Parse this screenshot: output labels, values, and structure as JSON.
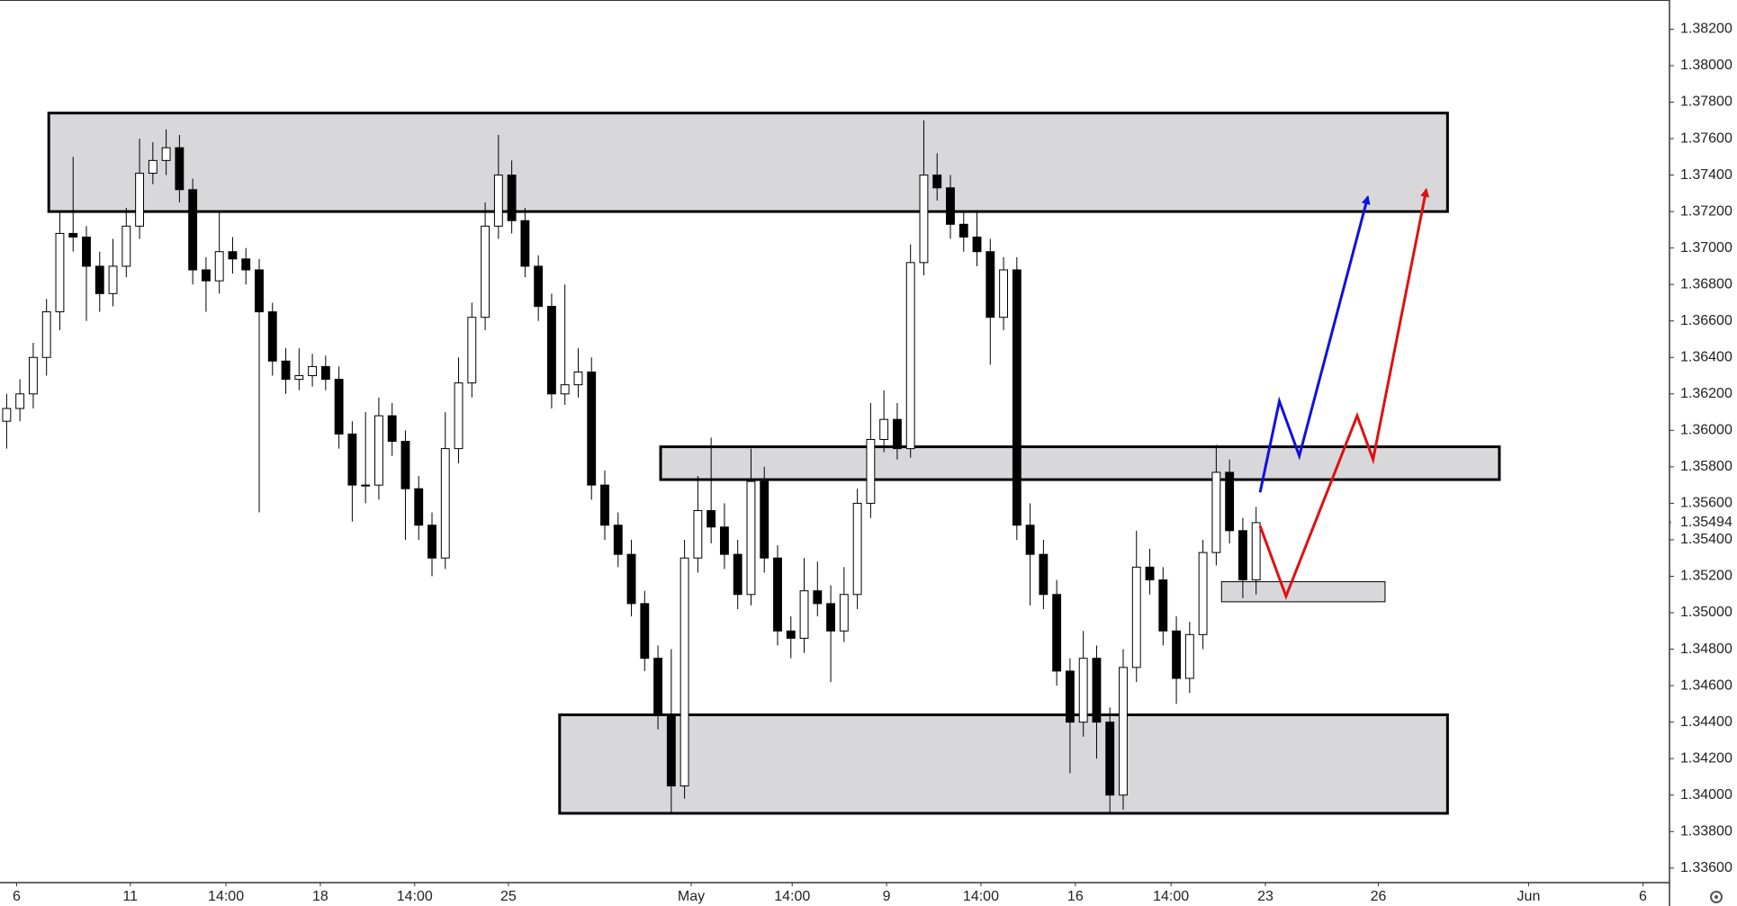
{
  "chart_data": {
    "type": "candlestick",
    "open": [
      1.3605,
      1.3612,
      1.362,
      1.364,
      1.3665,
      1.3708,
      1.3706,
      1.369,
      1.3675,
      1.369,
      1.3712,
      1.3741,
      1.3748,
      1.3755,
      1.3732,
      1.3688,
      1.3682,
      1.3698,
      1.3694,
      1.3688,
      1.3665,
      1.3638,
      1.3628,
      1.363,
      1.3635,
      1.3628,
      1.3598,
      1.357,
      1.357,
      1.3608,
      1.3594,
      1.3568,
      1.3548,
      1.353,
      1.359,
      1.3626,
      1.3662,
      1.3712,
      1.374,
      1.3715,
      1.369,
      1.3668,
      1.362,
      1.3625,
      1.3632,
      1.357,
      1.3548,
      1.3532,
      1.3505,
      1.3475,
      1.3444,
      1.3405,
      1.353,
      1.3556,
      1.3547,
      1.3532,
      1.351,
      1.3572,
      1.353,
      1.349,
      1.3486,
      1.3512,
      1.3505,
      1.349,
      1.351,
      1.356,
      1.3595,
      1.3606,
      1.359,
      1.3692,
      1.374,
      1.3733,
      1.3713,
      1.3706,
      1.3698,
      1.3662,
      1.3688,
      1.3548,
      1.3532,
      1.351,
      1.3468,
      1.344,
      1.3475,
      1.344,
      1.34,
      1.347,
      1.3525,
      1.3518,
      1.349,
      1.3464,
      1.3488,
      1.3533,
      1.3577,
      1.3545,
      1.3518
    ],
    "high": [
      1.362,
      1.3628,
      1.3648,
      1.3672,
      1.372,
      1.375,
      1.3712,
      1.3698,
      1.3705,
      1.3722,
      1.376,
      1.3758,
      1.3765,
      1.3762,
      1.3738,
      1.3695,
      1.372,
      1.3706,
      1.37,
      1.3694,
      1.367,
      1.3645,
      1.3645,
      1.3642,
      1.3641,
      1.3635,
      1.3605,
      1.361,
      1.3618,
      1.3615,
      1.36,
      1.3575,
      1.3555,
      1.361,
      1.364,
      1.367,
      1.3725,
      1.3762,
      1.3748,
      1.3722,
      1.3696,
      1.3675,
      1.368,
      1.3645,
      1.364,
      1.3578,
      1.3555,
      1.354,
      1.3512,
      1.3482,
      1.348,
      1.354,
      1.3575,
      1.3596,
      1.356,
      1.354,
      1.359,
      1.358,
      1.3537,
      1.3498,
      1.353,
      1.3528,
      1.3515,
      1.3525,
      1.3568,
      1.3615,
      1.3622,
      1.3615,
      1.3702,
      1.377,
      1.3752,
      1.374,
      1.372,
      1.372,
      1.3705,
      1.3695,
      1.3695,
      1.356,
      1.354,
      1.3518,
      1.3475,
      1.349,
      1.3482,
      1.3448,
      1.348,
      1.3545,
      1.3535,
      1.3525,
      1.3498,
      1.3495,
      1.354,
      1.3592,
      1.3584,
      1.3552,
      1.3558
    ],
    "low": [
      1.359,
      1.3605,
      1.3612,
      1.363,
      1.3655,
      1.3698,
      1.366,
      1.3665,
      1.3668,
      1.3684,
      1.3705,
      1.3735,
      1.374,
      1.3725,
      1.368,
      1.3665,
      1.3675,
      1.3686,
      1.368,
      1.3555,
      1.363,
      1.362,
      1.3622,
      1.3624,
      1.3622,
      1.359,
      1.355,
      1.356,
      1.3562,
      1.3586,
      1.354,
      1.354,
      1.352,
      1.3524,
      1.3582,
      1.3618,
      1.3655,
      1.3705,
      1.3708,
      1.3684,
      1.366,
      1.3612,
      1.3614,
      1.3618,
      1.3562,
      1.354,
      1.3525,
      1.3498,
      1.3468,
      1.3436,
      1.339,
      1.3398,
      1.3522,
      1.3538,
      1.3524,
      1.3502,
      1.3504,
      1.3522,
      1.3482,
      1.3475,
      1.3478,
      1.3498,
      1.3462,
      1.3484,
      1.3502,
      1.3552,
      1.3588,
      1.3584,
      1.3585,
      1.3685,
      1.3726,
      1.3705,
      1.3698,
      1.369,
      1.3636,
      1.3655,
      1.354,
      1.3504,
      1.3502,
      1.346,
      1.3412,
      1.3432,
      1.342,
      1.339,
      1.3392,
      1.3462,
      1.351,
      1.3482,
      1.345,
      1.3456,
      1.348,
      1.3526,
      1.3538,
      1.3508,
      1.351
    ],
    "close": [
      1.3612,
      1.362,
      1.364,
      1.3665,
      1.3708,
      1.3706,
      1.369,
      1.3675,
      1.369,
      1.3712,
      1.3741,
      1.3748,
      1.3755,
      1.3732,
      1.3688,
      1.3682,
      1.3698,
      1.3694,
      1.3688,
      1.3665,
      1.3638,
      1.3628,
      1.363,
      1.3635,
      1.3628,
      1.3598,
      1.357,
      1.357,
      1.3608,
      1.3594,
      1.3568,
      1.3548,
      1.353,
      1.359,
      1.3626,
      1.3662,
      1.3712,
      1.374,
      1.3715,
      1.369,
      1.3668,
      1.362,
      1.3625,
      1.3632,
      1.357,
      1.3548,
      1.3532,
      1.3505,
      1.3475,
      1.3444,
      1.3405,
      1.353,
      1.3556,
      1.3547,
      1.3532,
      1.351,
      1.3572,
      1.353,
      1.349,
      1.3486,
      1.3512,
      1.3505,
      1.349,
      1.351,
      1.356,
      1.3595,
      1.3606,
      1.359,
      1.3692,
      1.374,
      1.3733,
      1.3713,
      1.3706,
      1.3698,
      1.3662,
      1.3688,
      1.3548,
      1.3532,
      1.351,
      1.3468,
      1.344,
      1.3475,
      1.344,
      1.34,
      1.347,
      1.3525,
      1.3518,
      1.349,
      1.3464,
      1.3488,
      1.3533,
      1.3577,
      1.3545,
      1.3518,
      1.35494
    ],
    "up_color": "#ffffff",
    "down_color": "#000000",
    "last_price": {
      "value": 1.35494,
      "label": "1.35494"
    },
    "xlim": [
      0,
      125.6
    ],
    "ylim": [
      1.3352,
      1.3836
    ],
    "xticks": [
      {
        "value": 1.25,
        "label": "6"
      },
      {
        "value": 9.8,
        "label": "11"
      },
      {
        "value": 17,
        "label": "14:00"
      },
      {
        "value": 24.1,
        "label": "18"
      },
      {
        "value": 31.2,
        "label": "14:00"
      },
      {
        "value": 38.25,
        "label": "25"
      },
      {
        "value": 52,
        "label": "May"
      },
      {
        "value": 59.6,
        "label": "14:00"
      },
      {
        "value": 66.7,
        "label": "9"
      },
      {
        "value": 73.8,
        "label": "14:00"
      },
      {
        "value": 80.9,
        "label": "16"
      },
      {
        "value": 88.1,
        "label": "14:00"
      },
      {
        "value": 95.2,
        "label": "23"
      },
      {
        "value": 103.7,
        "label": "26"
      },
      {
        "value": 115,
        "label": "Jun"
      },
      {
        "value": 123.6,
        "label": "6"
      }
    ],
    "yticks": [
      {
        "value": 1.336,
        "label": "1.33600"
      },
      {
        "value": 1.338,
        "label": "1.33800"
      },
      {
        "value": 1.34,
        "label": "1.34000"
      },
      {
        "value": 1.342,
        "label": "1.34200"
      },
      {
        "value": 1.344,
        "label": "1.34400"
      },
      {
        "value": 1.346,
        "label": "1.34600"
      },
      {
        "value": 1.348,
        "label": "1.34800"
      },
      {
        "value": 1.35,
        "label": "1.35000"
      },
      {
        "value": 1.352,
        "label": "1.35200"
      },
      {
        "value": 1.354,
        "label": "1.35400"
      },
      {
        "value": 1.356,
        "label": "1.35600"
      },
      {
        "value": 1.358,
        "label": "1.35800"
      },
      {
        "value": 1.36,
        "label": "1.36000"
      },
      {
        "value": 1.362,
        "label": "1.36200"
      },
      {
        "value": 1.364,
        "label": "1.36400"
      },
      {
        "value": 1.366,
        "label": "1.36600"
      },
      {
        "value": 1.368,
        "label": "1.36800"
      },
      {
        "value": 1.37,
        "label": "1.37000"
      },
      {
        "value": 1.372,
        "label": "1.37200"
      },
      {
        "value": 1.374,
        "label": "1.37400"
      },
      {
        "value": 1.376,
        "label": "1.37600"
      },
      {
        "value": 1.378,
        "label": "1.37800"
      },
      {
        "value": 1.38,
        "label": "1.38000"
      },
      {
        "value": 1.382,
        "label": "1.38200"
      }
    ],
    "zones": [
      {
        "x": [
          3.67,
          108.9
        ],
        "y": [
          1.372,
          1.3774
        ]
      },
      {
        "x": [
          49.7,
          112.8
        ],
        "y": [
          1.3573,
          1.3591
        ]
      },
      {
        "x": [
          42.1,
          108.9
        ],
        "y": [
          1.339,
          1.3444
        ]
      },
      {
        "x": [
          91.9,
          104.2
        ],
        "y": [
          1.3506,
          1.3517
        ]
      }
    ],
    "paths": [
      {
        "color": "#1010e0",
        "x": [
          94.8,
          96.25,
          97.75,
          102.9
        ],
        "y": [
          1.3566,
          1.3616,
          1.3586,
          1.3728
        ]
      },
      {
        "color": "#e01010",
        "x": [
          94.8,
          96.75,
          102.1,
          103.3,
          107.3
        ],
        "y": [
          1.35476,
          1.3509,
          1.3608,
          1.3584,
          1.3732
        ]
      }
    ]
  }
}
